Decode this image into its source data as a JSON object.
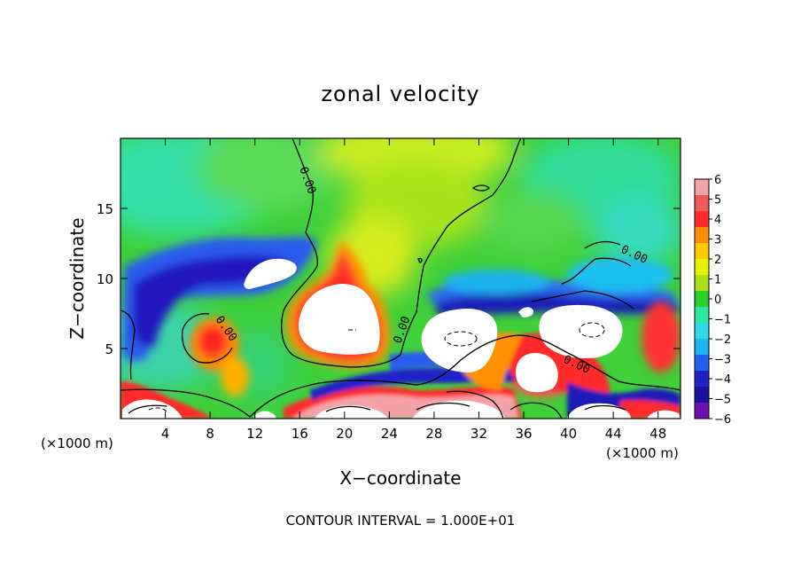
{
  "chart_data": {
    "type": "heatmap",
    "title": "zonal velocity",
    "xlabel": "X−coordinate",
    "ylabel": "Z−coordinate",
    "x_unit": "(×1000 m)",
    "footer": "CONTOUR INTERVAL = 1.000E+01",
    "xlim": [
      0,
      50
    ],
    "ylim": [
      0,
      20
    ],
    "x_ticks": [
      4,
      8,
      12,
      16,
      20,
      24,
      28,
      32,
      36,
      40,
      44,
      48
    ],
    "x_tick_labels": [
      "4",
      "8",
      "12",
      "16",
      "20",
      "24",
      "28",
      "32",
      "36",
      "40",
      "44",
      "48"
    ],
    "y_ticks": [
      5,
      10,
      15
    ],
    "y_tick_labels": [
      "5",
      "10",
      "15"
    ],
    "colorbar": {
      "min": -6,
      "max": 6,
      "labels": [
        "6",
        "5",
        "4",
        "3",
        "2",
        "1",
        "0",
        "−1",
        "−2",
        "−3",
        "−4",
        "−5",
        "−6"
      ],
      "colors": [
        "#f4a2a8",
        "#f05a5a",
        "#ff2a2a",
        "#ff8c00",
        "#ffc800",
        "#e6f000",
        "#a8e01a",
        "#2ad02a",
        "#28e8a0",
        "#2ad8e8",
        "#1ab4f0",
        "#2060f0",
        "#2020c8",
        "#1c10a0",
        "#7010b0"
      ]
    },
    "contour_labels": [
      "0.00",
      "0.00",
      "0.00",
      "0.00",
      "0.00"
    ],
    "contour_interval": 10
  }
}
